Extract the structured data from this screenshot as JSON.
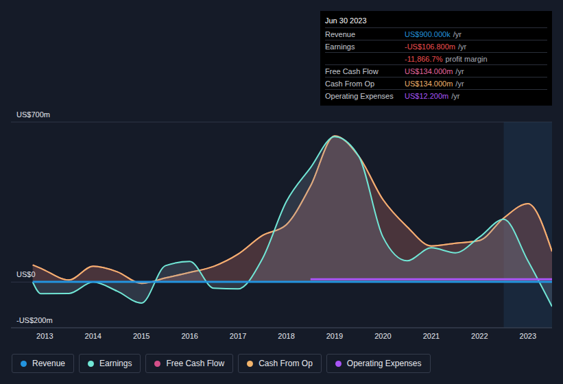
{
  "chart_data": {
    "type": "area",
    "x": [
      2012.75,
      2012.92,
      2013.5,
      2014.0,
      2014.5,
      2015.0,
      2015.5,
      2016.0,
      2016.5,
      2017.0,
      2017.5,
      2018.0,
      2018.5,
      2019.0,
      2019.5,
      2020.0,
      2020.5,
      2021.0,
      2021.5,
      2022.0,
      2022.5,
      2023.0,
      2023.5
    ],
    "xlim": [
      2012.3,
      2023.5
    ],
    "xticks": [
      2013,
      2014,
      2015,
      2016,
      2017,
      2018,
      2019,
      2020,
      2021,
      2022,
      2023
    ],
    "ylim": [
      -200,
      700
    ],
    "yticks": [
      {
        "value": -200,
        "label": "-US$200m"
      },
      {
        "value": 0,
        "label": "US$0"
      },
      {
        "value": 700,
        "label": "US$700m"
      }
    ],
    "grid": true,
    "highlight_x": [
      2022.5,
      2023.5
    ],
    "series": [
      {
        "name": "Revenue",
        "color": "#2394df",
        "type": "line",
        "values": [
          0.9,
          0.9,
          0.9,
          0.9,
          0.9,
          0.9,
          0.9,
          0.9,
          0.9,
          0.9,
          0.9,
          0.9,
          0.9,
          0.9,
          0.9,
          0.9,
          0.9,
          0.9,
          0.9,
          0.9,
          0.9,
          0.9,
          0.9
        ]
      },
      {
        "name": "Earnings",
        "color": "#71e7d6",
        "type": "area",
        "values": [
          0,
          -51,
          -50,
          0,
          -40,
          -92,
          72,
          90,
          -27,
          -30,
          100,
          352,
          500,
          636,
          550,
          197,
          93,
          150,
          128,
          197,
          275,
          93,
          -107
        ]
      },
      {
        "name": "Free Cash Flow",
        "color": "#d44f8a",
        "type": "area",
        "values": [
          75,
          60,
          9,
          69,
          45,
          -6,
          18,
          42,
          69,
          122,
          203,
          251,
          420,
          639,
          550,
          361,
          242,
          158,
          170,
          182,
          280,
          343,
          134
        ]
      },
      {
        "name": "Cash From Op",
        "color": "#f2b46c",
        "type": "area",
        "values": [
          75,
          60,
          9,
          69,
          45,
          -6,
          18,
          42,
          69,
          122,
          203,
          251,
          420,
          639,
          550,
          361,
          242,
          158,
          170,
          182,
          280,
          343,
          134
        ]
      },
      {
        "name": "Operating Expenses",
        "color": "#a855f7",
        "type": "line",
        "values": [
          null,
          null,
          null,
          null,
          null,
          null,
          null,
          null,
          null,
          null,
          null,
          null,
          12,
          12,
          12,
          12,
          12,
          12,
          12,
          12,
          12,
          12,
          12
        ]
      }
    ],
    "tooltip": {
      "date": "Jun 30 2023",
      "rows": [
        {
          "label": "Revenue",
          "value": "US$900.000k",
          "unit": "/yr",
          "color": "#2394df"
        },
        {
          "label": "Earnings",
          "value": "-US$106.800m",
          "unit": "/yr",
          "color": "#f04e4e"
        },
        {
          "label": "",
          "value": "-11,866.7%",
          "unit": "profit margin",
          "color": "#f04e4e"
        },
        {
          "label": "Free Cash Flow",
          "value": "US$134.000m",
          "unit": "/yr",
          "color": "#e8669e"
        },
        {
          "label": "Cash From Op",
          "value": "US$134.000m",
          "unit": "/yr",
          "color": "#f2b46c"
        },
        {
          "label": "Operating Expenses",
          "value": "US$12.200m",
          "unit": "/yr",
          "color": "#a855f7"
        }
      ]
    }
  }
}
